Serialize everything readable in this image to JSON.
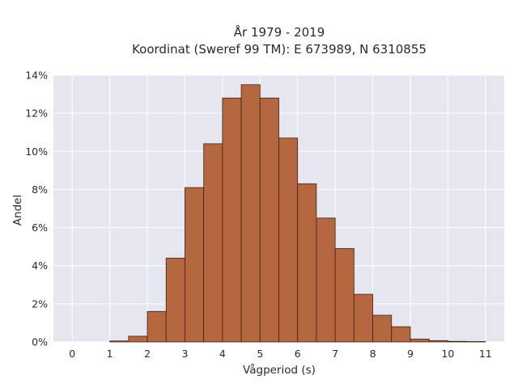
{
  "chart_data": {
    "type": "bar",
    "title_line1": "År 1979 - 2019",
    "title_line2": "Koordinat (Sweref 99 TM): E 673989, N 6310855",
    "xlabel": "Vågperiod (s)",
    "ylabel": "Andel",
    "xlim": [
      -0.5,
      11.5
    ],
    "ylim": [
      0,
      0.14
    ],
    "x_ticks": [
      0,
      1,
      2,
      3,
      4,
      5,
      6,
      7,
      8,
      9,
      10,
      11
    ],
    "x_tick_labels": [
      "0",
      "1",
      "2",
      "3",
      "4",
      "5",
      "6",
      "7",
      "8",
      "9",
      "10",
      "11"
    ],
    "y_ticks": [
      0,
      0.02,
      0.04,
      0.06,
      0.08,
      0.1,
      0.12,
      0.14
    ],
    "y_tick_labels": [
      "0%",
      "2%",
      "4%",
      "6%",
      "8%",
      "10%",
      "12%",
      "14%"
    ],
    "bin_width": 0.5,
    "bins": [
      {
        "start": 1.0,
        "value": 0.0005
      },
      {
        "start": 1.5,
        "value": 0.003
      },
      {
        "start": 2.0,
        "value": 0.016
      },
      {
        "start": 2.5,
        "value": 0.044
      },
      {
        "start": 3.0,
        "value": 0.081
      },
      {
        "start": 3.5,
        "value": 0.104
      },
      {
        "start": 4.0,
        "value": 0.128
      },
      {
        "start": 4.5,
        "value": 0.135
      },
      {
        "start": 5.0,
        "value": 0.128
      },
      {
        "start": 5.5,
        "value": 0.107
      },
      {
        "start": 6.0,
        "value": 0.083
      },
      {
        "start": 6.5,
        "value": 0.065
      },
      {
        "start": 7.0,
        "value": 0.049
      },
      {
        "start": 7.5,
        "value": 0.025
      },
      {
        "start": 8.0,
        "value": 0.014
      },
      {
        "start": 8.5,
        "value": 0.008
      },
      {
        "start": 9.0,
        "value": 0.0015
      },
      {
        "start": 9.5,
        "value": 0.0007
      },
      {
        "start": 10.0,
        "value": 0.0003
      },
      {
        "start": 10.5,
        "value": 0.0002
      }
    ],
    "grid": true,
    "colors": {
      "bar_fill": "#b5683f",
      "bar_stroke": "#3d2416",
      "plot_background": "#e6e6f0",
      "grid": "#ffffff"
    }
  }
}
